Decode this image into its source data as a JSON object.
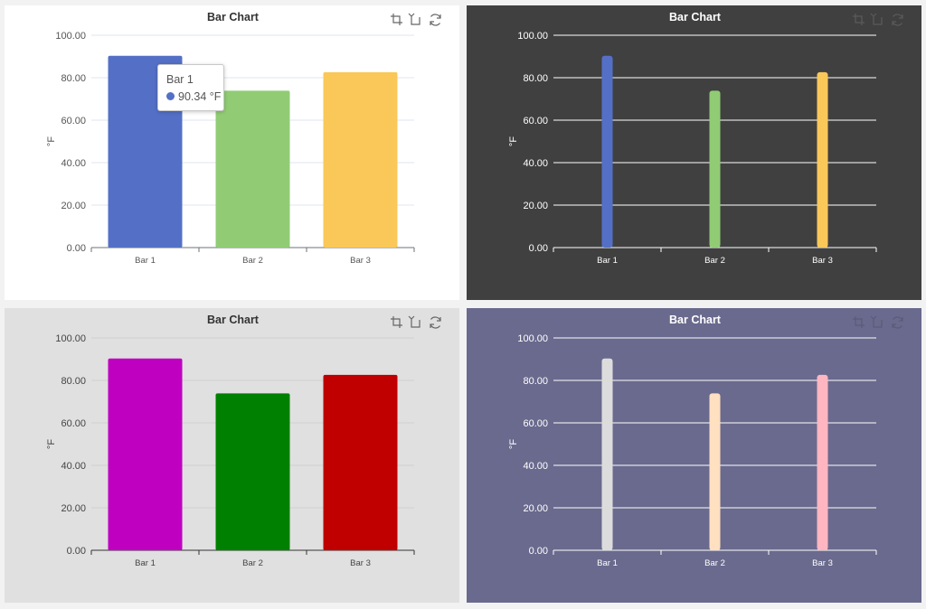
{
  "chart_data": [
    {
      "type": "bar",
      "title": "Bar Chart",
      "categories": [
        "Bar 1",
        "Bar 2",
        "Bar 3"
      ],
      "values": [
        90.34,
        73.9,
        82.6
      ],
      "ylabel": "°F",
      "ylim": [
        0,
        100
      ],
      "yticks": [
        "0.00",
        "20.00",
        "40.00",
        "60.00",
        "80.00",
        "100.00"
      ],
      "bar_colors": [
        "#5470c6",
        "#91cc75",
        "#fac858"
      ],
      "background": "#ffffff",
      "grid": true,
      "bar_style": "wide",
      "tooltip": {
        "category": "Bar 1",
        "value_text": "90.34 °F",
        "color": "#5470c6"
      }
    },
    {
      "type": "bar",
      "title": "Bar Chart",
      "categories": [
        "Bar 1",
        "Bar 2",
        "Bar 3"
      ],
      "values": [
        90.34,
        73.9,
        82.6
      ],
      "ylabel": "°F",
      "ylim": [
        0,
        100
      ],
      "yticks": [
        "0.00",
        "20.00",
        "40.00",
        "60.00",
        "80.00",
        "100.00"
      ],
      "bar_colors": [
        "#5470c6",
        "#91cc75",
        "#fac858"
      ],
      "background": "#404040",
      "grid": true,
      "bar_style": "narrow"
    },
    {
      "type": "bar",
      "title": "Bar Chart",
      "categories": [
        "Bar 1",
        "Bar 2",
        "Bar 3"
      ],
      "values": [
        90.34,
        73.9,
        82.6
      ],
      "ylabel": "°F",
      "ylim": [
        0,
        100
      ],
      "yticks": [
        "0.00",
        "20.00",
        "40.00",
        "60.00",
        "80.00",
        "100.00"
      ],
      "bar_colors": [
        "#c000c0",
        "#008000",
        "#c00000"
      ],
      "background": "#e0e0e0",
      "grid": true,
      "bar_style": "wide"
    },
    {
      "type": "bar",
      "title": "Bar Chart",
      "categories": [
        "Bar 1",
        "Bar 2",
        "Bar 3"
      ],
      "values": [
        90.34,
        73.9,
        82.6
      ],
      "ylabel": "°F",
      "ylim": [
        0,
        100
      ],
      "yticks": [
        "0.00",
        "20.00",
        "40.00",
        "60.00",
        "80.00",
        "100.00"
      ],
      "bar_colors": [
        "#dcdcdc",
        "#ffe0c0",
        "#ffb6c1"
      ],
      "background": "#6a6a8e",
      "grid": true,
      "bar_style": "narrow"
    }
  ],
  "toolbox": {
    "icons": [
      "zoom-icon",
      "zoom-reset-icon",
      "restore-icon"
    ],
    "colors": [
      "#666666",
      "#5a5a5a",
      "#666666",
      "#5a5a78"
    ]
  },
  "themes": {
    "title_colors": [
      "#333333",
      "#ffffff",
      "#333333",
      "#ffffff"
    ],
    "text_colors": [
      "#555555",
      "#ffffff",
      "#444444",
      "#ffffff"
    ],
    "axis_colors": [
      "#6e7079",
      "#ffffff",
      "#333333",
      "#ffffff"
    ],
    "grid_colors": [
      "#e0e6f1",
      "#ffffff",
      "#d0d0d0",
      "#ffffff"
    ]
  }
}
